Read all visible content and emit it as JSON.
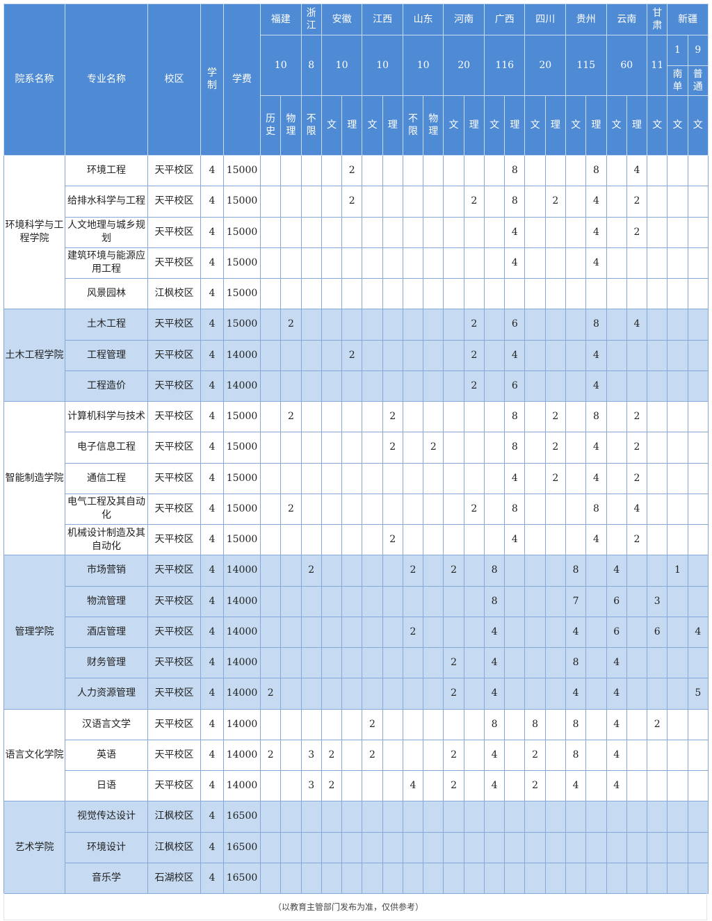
{
  "header": {
    "department": "院系名称",
    "major": "专业名称",
    "campus": "校区",
    "duration": "学制",
    "tuition": "学费",
    "provinces": [
      {
        "name": "福建",
        "quota": "10",
        "subjects": [
          "历史",
          "物理"
        ]
      },
      {
        "name": "浙江",
        "quota": "8",
        "subjects": [
          "不限"
        ]
      },
      {
        "name": "安徽",
        "quota": "10",
        "subjects": [
          "文",
          "理"
        ]
      },
      {
        "name": "江西",
        "quota": "10",
        "subjects": [
          "文",
          "理"
        ]
      },
      {
        "name": "山东",
        "quota": "10",
        "subjects": [
          "不限",
          "物理"
        ]
      },
      {
        "name": "河南",
        "quota": "20",
        "subjects": [
          "文",
          "理"
        ]
      },
      {
        "name": "广西",
        "quota": "116",
        "subjects": [
          "文",
          "理"
        ]
      },
      {
        "name": "四川",
        "quota": "20",
        "subjects": [
          "文",
          "理"
        ]
      },
      {
        "name": "贵州",
        "quota": "115",
        "subjects": [
          "文",
          "理"
        ]
      },
      {
        "name": "云南",
        "quota": "60",
        "subjects": [
          "文",
          "理"
        ]
      },
      {
        "name": "甘肃",
        "quota": "11",
        "subjects": [
          "文"
        ]
      }
    ],
    "xinjiang": {
      "name": "新疆",
      "groups": [
        {
          "quota": "1",
          "type": "南单",
          "subject": "文"
        },
        {
          "quota": "9",
          "type": "普通",
          "subject": "文"
        }
      ]
    }
  },
  "departments": [
    {
      "name": "环境科学与工程学院",
      "majors": [
        {
          "name": "环境工程",
          "campus": "天平校区",
          "duration": "4",
          "tuition": "15000",
          "values": [
            "",
            "",
            "",
            "",
            "2",
            "",
            "",
            "",
            "",
            "",
            "",
            "",
            "8",
            "",
            "",
            "",
            "8",
            "",
            "4",
            "",
            "",
            ""
          ]
        },
        {
          "name": "给排水科学与工程",
          "campus": "天平校区",
          "duration": "4",
          "tuition": "15000",
          "values": [
            "",
            "",
            "",
            "",
            "2",
            "",
            "",
            "",
            "",
            "",
            "2",
            "",
            "8",
            "",
            "2",
            "",
            "4",
            "",
            "2",
            "",
            "",
            ""
          ]
        },
        {
          "name": "人文地理与城乡规划",
          "campus": "天平校区",
          "duration": "4",
          "tuition": "15000",
          "values": [
            "",
            "",
            "",
            "",
            "",
            "",
            "",
            "",
            "",
            "",
            "",
            "",
            "4",
            "",
            "",
            "",
            "4",
            "",
            "2",
            "",
            "",
            ""
          ]
        },
        {
          "name": "建筑环境与能源应用工程",
          "campus": "天平校区",
          "duration": "4",
          "tuition": "15000",
          "values": [
            "",
            "",
            "",
            "",
            "",
            "",
            "",
            "",
            "",
            "",
            "",
            "",
            "4",
            "",
            "",
            "",
            "4",
            "",
            "",
            "",
            "",
            ""
          ]
        },
        {
          "name": "风景园林",
          "campus": "江枫校区",
          "duration": "4",
          "tuition": "15000",
          "values": [
            "",
            "",
            "",
            "",
            "",
            "",
            "",
            "",
            "",
            "",
            "",
            "",
            "",
            "",
            "",
            "",
            "",
            "",
            "",
            "",
            "",
            ""
          ]
        }
      ]
    },
    {
      "name": "土木工程学院",
      "majors": [
        {
          "name": "土木工程",
          "campus": "天平校区",
          "duration": "4",
          "tuition": "15000",
          "values": [
            "",
            "2",
            "",
            "",
            "",
            "",
            "",
            "",
            "",
            "",
            "2",
            "",
            "6",
            "",
            "",
            "",
            "8",
            "",
            "4",
            "",
            "",
            ""
          ]
        },
        {
          "name": "工程管理",
          "campus": "天平校区",
          "duration": "4",
          "tuition": "14000",
          "values": [
            "",
            "",
            "",
            "",
            "2",
            "",
            "",
            "",
            "",
            "",
            "2",
            "",
            "4",
            "",
            "",
            "",
            "4",
            "",
            "",
            "",
            "",
            ""
          ]
        },
        {
          "name": "工程造价",
          "campus": "天平校区",
          "duration": "4",
          "tuition": "14000",
          "values": [
            "",
            "",
            "",
            "",
            "",
            "",
            "",
            "",
            "",
            "",
            "2",
            "",
            "6",
            "",
            "",
            "",
            "4",
            "",
            "",
            "",
            "",
            ""
          ]
        }
      ]
    },
    {
      "name": "智能制造学院",
      "majors": [
        {
          "name": "计算机科学与技术",
          "campus": "天平校区",
          "duration": "4",
          "tuition": "15000",
          "values": [
            "",
            "2",
            "",
            "",
            "",
            "",
            "2",
            "",
            "",
            "",
            "",
            "",
            "8",
            "",
            "2",
            "",
            "8",
            "",
            "2",
            "",
            "",
            ""
          ]
        },
        {
          "name": "电子信息工程",
          "campus": "天平校区",
          "duration": "4",
          "tuition": "15000",
          "values": [
            "",
            "",
            "",
            "",
            "",
            "",
            "2",
            "",
            "2",
            "",
            "",
            "",
            "8",
            "",
            "2",
            "",
            "4",
            "",
            "2",
            "",
            "",
            ""
          ]
        },
        {
          "name": "通信工程",
          "campus": "天平校区",
          "duration": "4",
          "tuition": "15000",
          "values": [
            "",
            "",
            "",
            "",
            "",
            "",
            "",
            "",
            "",
            "",
            "",
            "",
            "4",
            "",
            "2",
            "",
            "4",
            "",
            "2",
            "",
            "",
            ""
          ]
        },
        {
          "name": "电气工程及其自动化",
          "campus": "天平校区",
          "duration": "4",
          "tuition": "15000",
          "values": [
            "",
            "2",
            "",
            "",
            "",
            "",
            "",
            "",
            "",
            "",
            "2",
            "",
            "8",
            "",
            "",
            "",
            "8",
            "",
            "4",
            "",
            "",
            ""
          ]
        },
        {
          "name": "机械设计制造及其自动化",
          "campus": "天平校区",
          "duration": "4",
          "tuition": "15000",
          "values": [
            "",
            "",
            "",
            "",
            "",
            "",
            "2",
            "",
            "",
            "",
            "",
            "",
            "4",
            "",
            "",
            "",
            "4",
            "",
            "2",
            "",
            "",
            ""
          ]
        }
      ]
    },
    {
      "name": "管理学院",
      "majors": [
        {
          "name": "市场营销",
          "campus": "天平校区",
          "duration": "4",
          "tuition": "14000",
          "values": [
            "",
            "",
            "2",
            "",
            "",
            "",
            "",
            "2",
            "",
            "2",
            "",
            "8",
            "",
            "",
            "",
            "8",
            "",
            "4",
            "",
            "",
            "1",
            ""
          ]
        },
        {
          "name": "物流管理",
          "campus": "天平校区",
          "duration": "4",
          "tuition": "14000",
          "values": [
            "",
            "",
            "",
            "",
            "",
            "",
            "",
            "",
            "",
            "",
            "",
            "8",
            "",
            "",
            "",
            "7",
            "",
            "6",
            "",
            "3",
            "",
            ""
          ]
        },
        {
          "name": "酒店管理",
          "campus": "天平校区",
          "duration": "4",
          "tuition": "14000",
          "values": [
            "",
            "",
            "",
            "",
            "",
            "",
            "",
            "2",
            "",
            "",
            "",
            "4",
            "",
            "",
            "",
            "4",
            "",
            "6",
            "",
            "6",
            "",
            "4"
          ]
        },
        {
          "name": "财务管理",
          "campus": "天平校区",
          "duration": "4",
          "tuition": "14000",
          "values": [
            "",
            "",
            "",
            "",
            "",
            "",
            "",
            "",
            "",
            "2",
            "",
            "4",
            "",
            "",
            "",
            "8",
            "",
            "4",
            "",
            "",
            "",
            ""
          ]
        },
        {
          "name": "人力资源管理",
          "campus": "天平校区",
          "duration": "4",
          "tuition": "14000",
          "values": [
            "2",
            "",
            "",
            "",
            "",
            "",
            "",
            "",
            "",
            "2",
            "",
            "4",
            "",
            "",
            "",
            "4",
            "",
            "4",
            "",
            "",
            "",
            "5"
          ]
        }
      ]
    },
    {
      "name": "语言文化学院",
      "majors": [
        {
          "name": "汉语言文学",
          "campus": "天平校区",
          "duration": "4",
          "tuition": "14000",
          "values": [
            "",
            "",
            "",
            "",
            "",
            "2",
            "",
            "",
            "",
            "",
            "",
            "8",
            "",
            "8",
            "",
            "8",
            "",
            "4",
            "",
            "2",
            "",
            ""
          ]
        },
        {
          "name": "英语",
          "campus": "天平校区",
          "duration": "4",
          "tuition": "14000",
          "values": [
            "2",
            "",
            "3",
            "2",
            "",
            "2",
            "",
            "",
            "",
            "2",
            "",
            "4",
            "",
            "2",
            "",
            "8",
            "",
            "4",
            "",
            "",
            "",
            ""
          ]
        },
        {
          "name": "日语",
          "campus": "天平校区",
          "duration": "4",
          "tuition": "14000",
          "values": [
            "",
            "",
            "3",
            "2",
            "",
            "",
            "",
            "4",
            "",
            "2",
            "",
            "4",
            "",
            "2",
            "",
            "4",
            "",
            "4",
            "",
            "",
            "",
            ""
          ]
        }
      ]
    },
    {
      "name": "艺术学院",
      "majors": [
        {
          "name": "视觉传达设计",
          "campus": "江枫校区",
          "duration": "4",
          "tuition": "16500",
          "values": [
            "",
            "",
            "",
            "",
            "",
            "",
            "",
            "",
            "",
            "",
            "",
            "",
            "",
            "",
            "",
            "",
            "",
            "",
            "",
            "",
            "",
            ""
          ]
        },
        {
          "name": "环境设计",
          "campus": "江枫校区",
          "duration": "4",
          "tuition": "16500",
          "values": [
            "",
            "",
            "",
            "",
            "",
            "",
            "",
            "",
            "",
            "",
            "",
            "",
            "",
            "",
            "",
            "",
            "",
            "",
            "",
            "",
            "",
            ""
          ]
        },
        {
          "name": "音乐学",
          "campus": "石湖校区",
          "duration": "4",
          "tuition": "16500",
          "values": [
            "",
            "",
            "",
            "",
            "",
            "",
            "",
            "",
            "",
            "",
            "",
            "",
            "",
            "",
            "",
            "",
            "",
            "",
            "",
            "",
            "",
            ""
          ]
        }
      ]
    }
  ],
  "footer": "（以教育主管部门发布为准，仅供参考）",
  "colors": {
    "header_bg": "#4f8bd4",
    "alt_row_bg": "#c6daf1",
    "border": "#84a9d8"
  }
}
